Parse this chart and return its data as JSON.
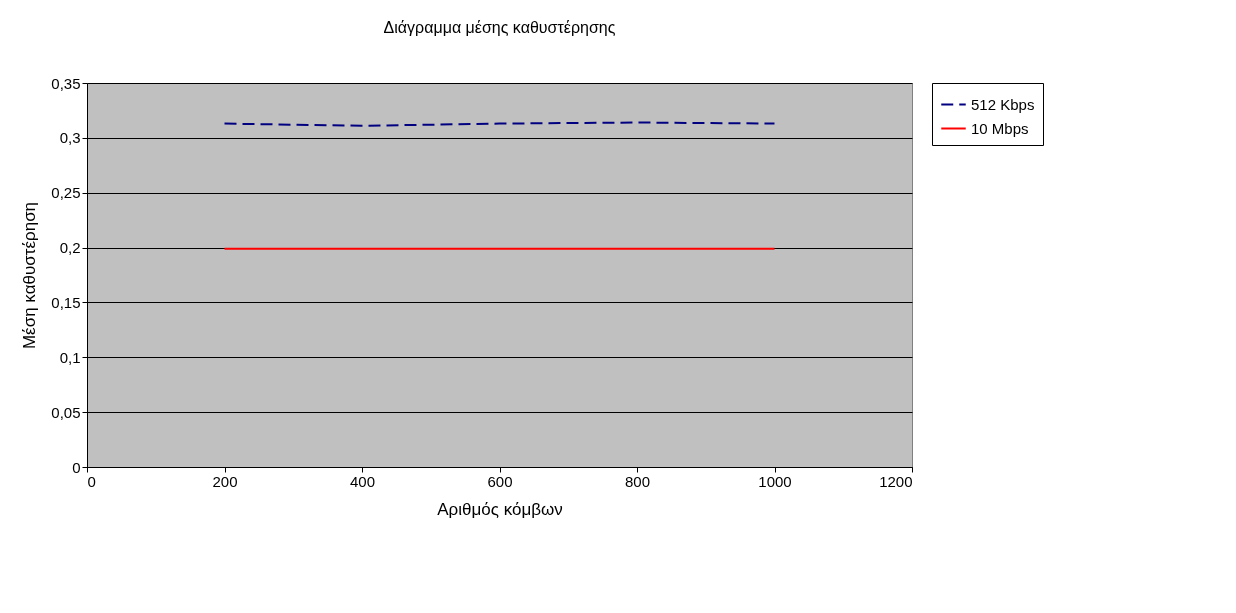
{
  "chart_data": {
    "type": "line",
    "title": "Διάγραμμα μέσης καθυστέρησης",
    "xlabel": "Αριθμός κόμβων",
    "ylabel": "Μέση καθυστέρηση",
    "x": [
      200,
      400,
      600,
      800,
      1000
    ],
    "series": [
      {
        "name": "512 Kbps",
        "color": "#000080",
        "line_style": "dashed",
        "values": [
          0.313,
          0.311,
          0.313,
          0.314,
          0.313
        ]
      },
      {
        "name": "10 Mbps",
        "color": "#ff0000",
        "line_style": "solid",
        "values": [
          0.199,
          0.199,
          0.199,
          0.199,
          0.199
        ]
      }
    ],
    "xlim": [
      0,
      1200
    ],
    "xticks": [
      0,
      200,
      400,
      600,
      800,
      1000,
      1200
    ],
    "ylim": [
      0,
      0.35
    ],
    "yticks": [
      {
        "value": 0,
        "label": "0"
      },
      {
        "value": 0.05,
        "label": "0,05"
      },
      {
        "value": 0.1,
        "label": "0,1"
      },
      {
        "value": 0.15,
        "label": "0,15"
      },
      {
        "value": 0.2,
        "label": "0,2"
      },
      {
        "value": 0.25,
        "label": "0,25"
      },
      {
        "value": 0.3,
        "label": "0,3"
      },
      {
        "value": 0.35,
        "label": "0,35"
      }
    ],
    "grid": "y",
    "legend": "right",
    "marker": "none"
  }
}
